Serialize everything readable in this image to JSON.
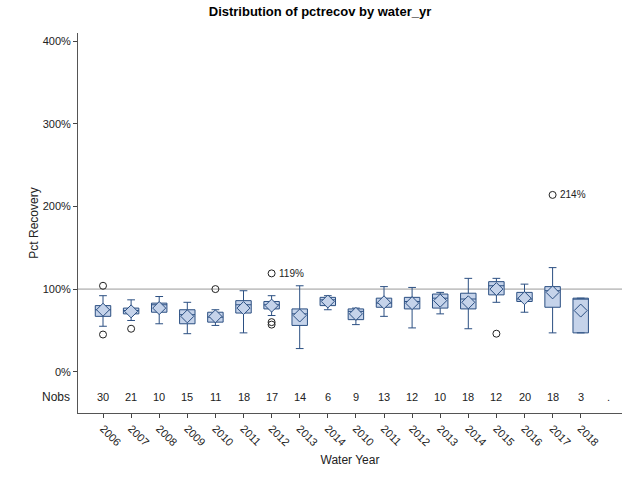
{
  "chart_data": {
    "type": "box",
    "title": "Distribution of pctrecov by water_yr",
    "x_label": "Water Year",
    "y_label": "Pct Recovery",
    "categories": [
      "2006",
      "2007",
      "2008",
      "2009",
      "2010",
      "2011",
      "2012",
      "2013",
      "2014",
      "2010",
      "2011",
      "2012",
      "2013",
      "2014",
      "2015",
      "2016",
      "2017",
      "2018",
      null
    ],
    "boxes": [
      {
        "low": 55,
        "q1": 67,
        "median": 75,
        "q3": 80,
        "high": 92,
        "mean": 75,
        "outliers": [
          104,
          45
        ]
      },
      {
        "low": 62,
        "q1": 70,
        "median": 74,
        "q3": 77,
        "high": 87,
        "mean": 73,
        "outliers": [
          52
        ]
      },
      {
        "low": 58,
        "q1": 72,
        "median": 81,
        "q3": 83,
        "high": 91,
        "mean": 77,
        "outliers": []
      },
      {
        "low": 46,
        "q1": 58,
        "median": 69,
        "q3": 75,
        "high": 84,
        "mean": 67,
        "outliers": []
      },
      {
        "low": 56,
        "q1": 60,
        "median": 66,
        "q3": 72,
        "high": 75,
        "mean": 67,
        "outliers": [
          100
        ]
      },
      {
        "low": 47,
        "q1": 71,
        "median": 81,
        "q3": 86,
        "high": 98,
        "mean": 77,
        "outliers": []
      },
      {
        "low": 68,
        "q1": 76,
        "median": 81,
        "q3": 85,
        "high": 92,
        "mean": 80,
        "outliers": [
          119,
          60,
          57
        ]
      },
      {
        "low": 28,
        "q1": 56,
        "median": 70,
        "q3": 76,
        "high": 104,
        "mean": 68,
        "outliers": []
      },
      {
        "low": 75,
        "q1": 80,
        "median": 87,
        "q3": 90,
        "high": 92,
        "mean": 85,
        "outliers": []
      },
      {
        "low": 57,
        "q1": 63,
        "median": 73,
        "q3": 76,
        "high": 77,
        "mean": 70,
        "outliers": []
      },
      {
        "low": 67,
        "q1": 78,
        "median": 83,
        "q3": 89,
        "high": 103,
        "mean": 84,
        "outliers": []
      },
      {
        "low": 53,
        "q1": 76,
        "median": 85,
        "q3": 90,
        "high": 102,
        "mean": 83,
        "outliers": []
      },
      {
        "low": 70,
        "q1": 77,
        "median": 89,
        "q3": 94,
        "high": 96,
        "mean": 86,
        "outliers": []
      },
      {
        "low": 52,
        "q1": 76,
        "median": 88,
        "q3": 95,
        "high": 113,
        "mean": 84,
        "outliers": []
      },
      {
        "low": 84,
        "q1": 93,
        "median": 104,
        "q3": 109,
        "high": 113,
        "mean": 100,
        "outliers": [
          46
        ]
      },
      {
        "low": 72,
        "q1": 85,
        "median": 88,
        "q3": 96,
        "high": 106,
        "mean": 89,
        "outliers": []
      },
      {
        "low": 47,
        "q1": 78,
        "median": 98,
        "q3": 103,
        "high": 126,
        "mean": 96,
        "outliers": [
          214
        ]
      },
      {
        "low": 47,
        "q1": 47,
        "median": 88,
        "q3": 89,
        "high": 89,
        "mean": 74,
        "outliers": []
      },
      null
    ],
    "outlier_labels": [
      {
        "index": 6,
        "value": 119,
        "label": "119%"
      },
      {
        "index": 16,
        "value": 214,
        "label": "214%"
      }
    ],
    "nobs_label": "Nobs",
    "nobs": [
      30,
      21,
      10,
      15,
      11,
      18,
      17,
      14,
      6,
      9,
      13,
      12,
      10,
      18,
      12,
      20,
      18,
      3,
      "."
    ],
    "reference_line": 100,
    "ylim": [
      -50,
      410
    ],
    "yticks": [
      {
        "value": 0,
        "label": "0%"
      },
      {
        "value": 100,
        "label": "100%"
      },
      {
        "value": 200,
        "label": "200%"
      },
      {
        "value": 300,
        "label": "300%"
      },
      {
        "value": 400,
        "label": "400%"
      }
    ],
    "color": "#c5d3ea",
    "grid": false
  }
}
